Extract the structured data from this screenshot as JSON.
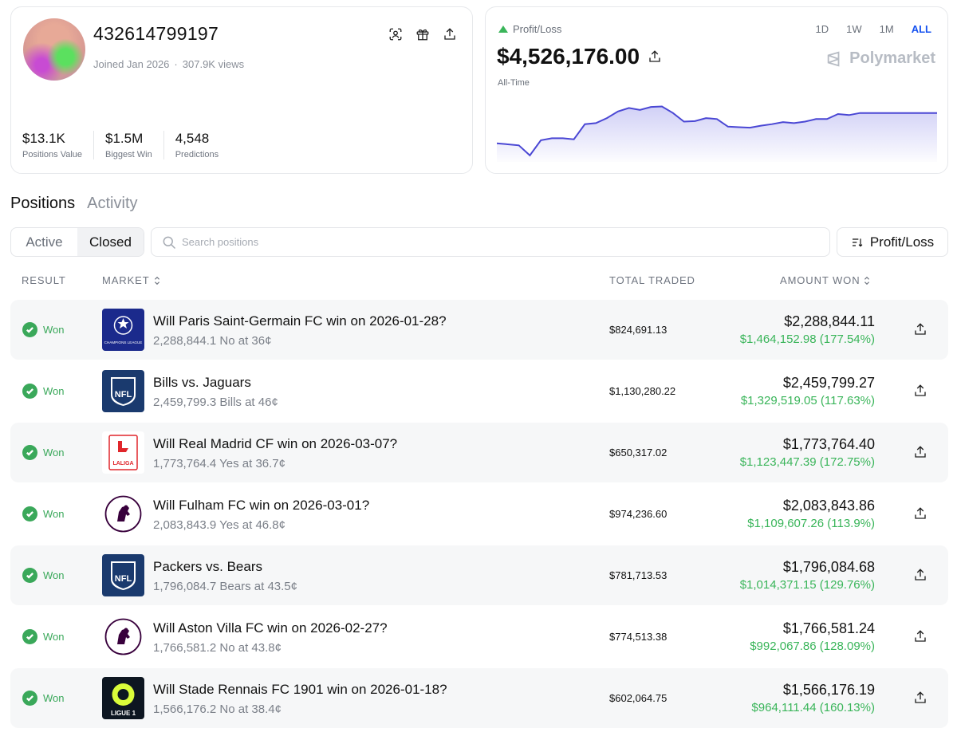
{
  "profile": {
    "username": "432614799197",
    "joined": "Joined Jan 2026",
    "views": "307.9K views",
    "stats": [
      {
        "value": "$13.1K",
        "label": "Positions Value"
      },
      {
        "value": "$1.5M",
        "label": "Biggest Win"
      },
      {
        "value": "4,548",
        "label": "Predictions"
      }
    ],
    "icons": [
      "scan-face-icon",
      "gift-icon",
      "share-icon"
    ]
  },
  "pnl": {
    "label": "Profit/Loss",
    "value": "$4,526,176.00",
    "period": "All-Time",
    "brand": "Polymarket",
    "ranges": [
      "1D",
      "1W",
      "1M",
      "ALL"
    ],
    "selected_range": "ALL",
    "colors": {
      "up": "#3ab55a",
      "line": "#4a47d4",
      "selected": "#1652f0"
    }
  },
  "chart_data": {
    "type": "area",
    "x": [
      0,
      1,
      2,
      3,
      4,
      5,
      6,
      7,
      8,
      9,
      10,
      11,
      12,
      13,
      14,
      15,
      16,
      17,
      18,
      19,
      20,
      21,
      22,
      23,
      24,
      25,
      26,
      27,
      28,
      29,
      30,
      31,
      32,
      33,
      34,
      35,
      36,
      37,
      38,
      39,
      40
    ],
    "values": [
      0.12,
      0.1,
      0.08,
      -0.12,
      0.18,
      0.22,
      0.22,
      0.2,
      0.5,
      0.52,
      0.62,
      0.75,
      0.82,
      0.78,
      0.84,
      0.85,
      0.72,
      0.55,
      0.56,
      0.62,
      0.6,
      0.45,
      0.44,
      0.43,
      0.47,
      0.5,
      0.54,
      0.52,
      0.55,
      0.6,
      0.6,
      0.7,
      0.68,
      0.72,
      0.72,
      0.72,
      0.72,
      0.72,
      0.72,
      0.72,
      0.72
    ],
    "title": "",
    "xlabel": "",
    "ylabel": "",
    "grid": false
  },
  "tabs": {
    "positions": "Positions",
    "activity": "Activity",
    "selected": "Positions"
  },
  "filter": {
    "active": "Active",
    "closed": "Closed",
    "selected": "Closed"
  },
  "search": {
    "placeholder": "Search positions",
    "value": ""
  },
  "sort": {
    "label": "Profit/Loss"
  },
  "table": {
    "headers": {
      "result": "RESULT",
      "market": "MARKET",
      "total_traded": "TOTAL TRADED",
      "amount_won": "AMOUNT WON"
    },
    "rows": [
      {
        "result": "Won",
        "logo": "champions-league-logo",
        "logo_text": "CHAMPIONS LEAGUE",
        "title": "Will Paris Saint-Germain FC win on 2026-01-28?",
        "subtitle": "2,288,844.1 No at 36¢",
        "traded": "$824,691.13",
        "won": "$2,288,844.11",
        "pnl": "$1,464,152.98 (177.54%)"
      },
      {
        "result": "Won",
        "logo": "nfl-logo",
        "logo_text": "NFL",
        "title": "Bills vs. Jaguars",
        "subtitle": "2,459,799.3 Bills at 46¢",
        "traded": "$1,130,280.22",
        "won": "$2,459,799.27",
        "pnl": "$1,329,519.05 (117.63%)"
      },
      {
        "result": "Won",
        "logo": "laliga-logo",
        "logo_text": "LALIGA",
        "title": "Will Real Madrid CF win on 2026-03-07?",
        "subtitle": "1,773,764.4 Yes at 36.7¢",
        "traded": "$650,317.02",
        "won": "$1,773,764.40",
        "pnl": "$1,123,447.39 (172.75%)"
      },
      {
        "result": "Won",
        "logo": "premier-league-logo",
        "logo_text": "",
        "title": "Will Fulham FC win on 2026-03-01?",
        "subtitle": "2,083,843.9 Yes at 46.8¢",
        "traded": "$974,236.60",
        "won": "$2,083,843.86",
        "pnl": "$1,109,607.26 (113.9%)"
      },
      {
        "result": "Won",
        "logo": "nfl-logo",
        "logo_text": "NFL",
        "title": "Packers vs. Bears",
        "subtitle": "1,796,084.7 Bears at 43.5¢",
        "traded": "$781,713.53",
        "won": "$1,796,084.68",
        "pnl": "$1,014,371.15 (129.76%)"
      },
      {
        "result": "Won",
        "logo": "premier-league-logo",
        "logo_text": "",
        "title": "Will Aston Villa FC win on 2026-02-27?",
        "subtitle": "1,766,581.2 No at 43.8¢",
        "traded": "$774,513.38",
        "won": "$1,766,581.24",
        "pnl": "$992,067.86 (128.09%)"
      },
      {
        "result": "Won",
        "logo": "ligue-1-logo",
        "logo_text": "LIGUE 1",
        "title": "Will Stade Rennais FC 1901 win on 2026-01-18?",
        "subtitle": "1,566,176.2 No at 38.4¢",
        "traded": "$602,064.75",
        "won": "$1,566,176.19",
        "pnl": "$964,111.44 (160.13%)"
      }
    ]
  }
}
